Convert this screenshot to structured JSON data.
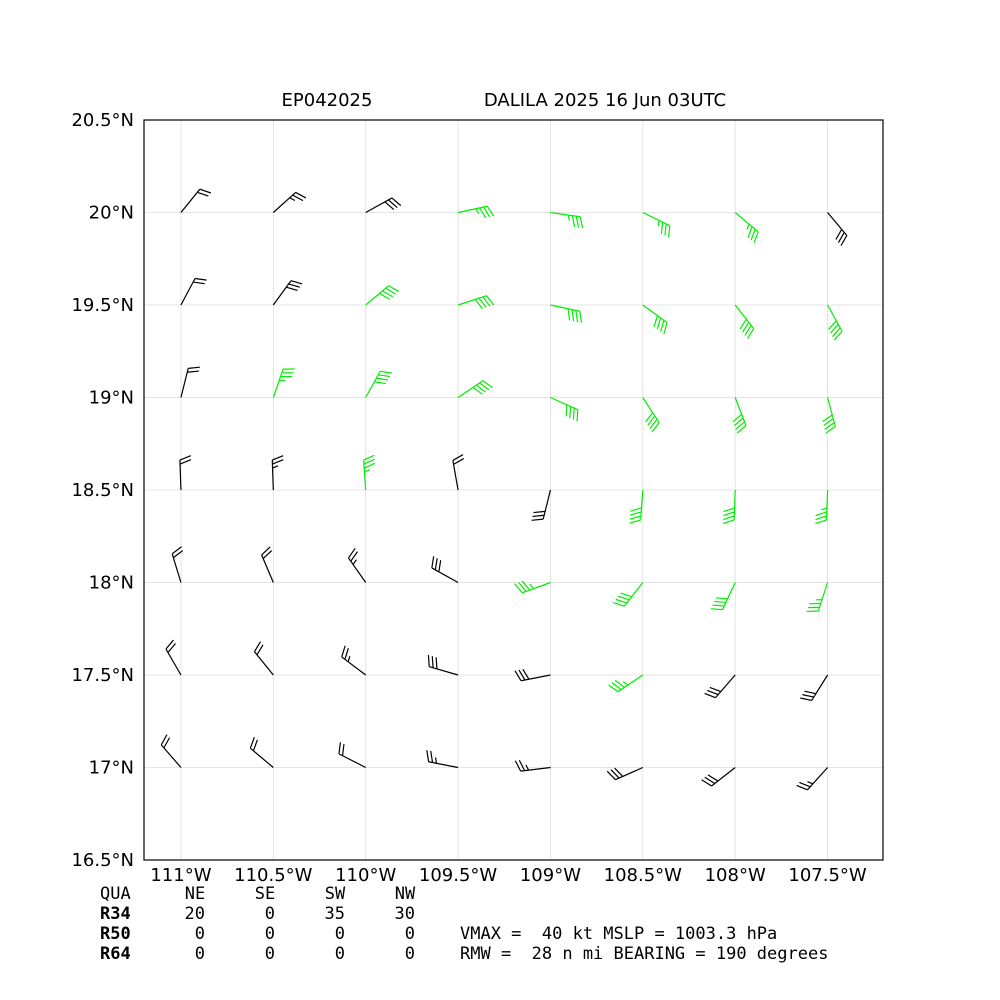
{
  "chart_data": {
    "type": "barbs",
    "title_left": "EP042025",
    "title": "DALILA 2025 16 Jun 03UTC",
    "xlim": [
      -111.2,
      -107.2
    ],
    "ylim": [
      16.5,
      20.5
    ],
    "xticks": [
      {
        "value": -111,
        "label": "111°W"
      },
      {
        "value": -110.5,
        "label": "110.5°W"
      },
      {
        "value": -110,
        "label": "110°W"
      },
      {
        "value": -109.5,
        "label": "109.5°W"
      },
      {
        "value": -109,
        "label": "109°W"
      },
      {
        "value": -108.5,
        "label": "108.5°W"
      },
      {
        "value": -108,
        "label": "108°W"
      },
      {
        "value": -107.5,
        "label": "107.5°W"
      }
    ],
    "yticks": [
      {
        "value": 16.5,
        "label": "16.5°N"
      },
      {
        "value": 17,
        "label": "17°N"
      },
      {
        "value": 17.5,
        "label": "17.5°N"
      },
      {
        "value": 18,
        "label": "18°N"
      },
      {
        "value": 18.5,
        "label": "18.5°N"
      },
      {
        "value": 19,
        "label": "19°N"
      },
      {
        "value": 19.5,
        "label": "19.5°N"
      },
      {
        "value": 20,
        "label": "20°N"
      },
      {
        "value": 20.5,
        "label": "20.5°N"
      }
    ],
    "grid": true,
    "color": "#000000",
    "gale_color": "#00ee00",
    "gale_threshold": 34,
    "barbs": {
      "lon": [
        -111,
        -110.5,
        -110,
        -109.5,
        -109,
        -108.5,
        -108,
        -107.5,
        -111,
        -110.5,
        -110,
        -109.5,
        -109,
        -108.5,
        -108,
        -107.5,
        -111,
        -110.5,
        -110,
        -109.5,
        -109,
        -108.5,
        -108,
        -107.5,
        -111,
        -110.5,
        -110,
        -109.5,
        -109,
        -108.5,
        -108,
        -107.5,
        -111,
        -110.5,
        -110,
        -109.5,
        -109,
        -108.5,
        -108,
        -107.5,
        -111,
        -110.5,
        -110,
        -109.5,
        -109,
        -108.5,
        -108,
        -107.5,
        -111,
        -110.5,
        -110,
        -109.5,
        -109,
        -108.5,
        -108,
        -107.5
      ],
      "lat": [
        17,
        17,
        17,
        17,
        17,
        17,
        17,
        17,
        17.5,
        17.5,
        17.5,
        17.5,
        17.5,
        17.5,
        17.5,
        17.5,
        18,
        18,
        18,
        18,
        18,
        18,
        18,
        18,
        18.5,
        18.5,
        18.5,
        18.5,
        18.5,
        18.5,
        18.5,
        18.5,
        19,
        19,
        19,
        19,
        19,
        19,
        19,
        19,
        19.5,
        19.5,
        19.5,
        19.5,
        19.5,
        19.5,
        19.5,
        19.5,
        20,
        20,
        20,
        20,
        20,
        20,
        20,
        20
      ],
      "speed": [
        20,
        20,
        20,
        25,
        25,
        30,
        30,
        25,
        20,
        20,
        25,
        30,
        30,
        35,
        30,
        30,
        20,
        20,
        25,
        30,
        35,
        40,
        40,
        35,
        20,
        25,
        35,
        20,
        30,
        40,
        40,
        35,
        20,
        35,
        40,
        40,
        40,
        40,
        40,
        40,
        20,
        30,
        40,
        40,
        40,
        40,
        40,
        40,
        20,
        25,
        30,
        35,
        35,
        35,
        35,
        30
      ],
      "direction": [
        319,
        310,
        297,
        281,
        263,
        246,
        232,
        222,
        330,
        321,
        307,
        286,
        259,
        236,
        221,
        212,
        343,
        337,
        325,
        299,
        250,
        218,
        205,
        198,
        358,
        358,
        356,
        350,
        194,
        184,
        182,
        182,
        14,
        19,
        29,
        56,
        114,
        147,
        159,
        165,
        28,
        36,
        50,
        72,
        102,
        126,
        142,
        151,
        39,
        48,
        61,
        78,
        98,
        116,
        130,
        140
      ]
    },
    "quadrant_table": {
      "header": [
        "QUA",
        "NE",
        "SE",
        "SW",
        "NW"
      ],
      "rows": [
        [
          "R34",
          20,
          0,
          35,
          30
        ],
        [
          "R50",
          0,
          0,
          0,
          0
        ],
        [
          "R64",
          0,
          0,
          0,
          0
        ]
      ]
    },
    "info_lines": [
      "VMAX =  40 kt MSLP = 1003.3 hPa",
      "RMW =  28 n mi BEARING = 190 degrees"
    ]
  }
}
